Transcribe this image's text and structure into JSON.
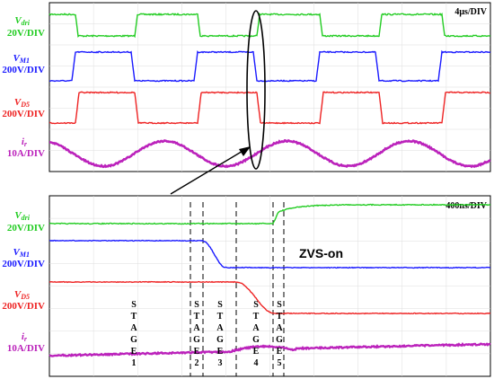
{
  "chart_data": [
    {
      "type": "line",
      "timebase": "4μs/DIV",
      "channels": [
        {
          "symbol": "V",
          "subscript": "dri",
          "scale": "20V/DIV",
          "color": "#22cc22"
        },
        {
          "symbol": "V",
          "subscript": "M1",
          "scale": "200V/DIV",
          "color": "#1a1aff"
        },
        {
          "symbol": "V",
          "subscript": "D5",
          "scale": "200V/DIV",
          "color": "#ee2222"
        },
        {
          "symbol": "i",
          "subscript": "r",
          "scale": "10A/DIV",
          "color": "#bb22bb"
        }
      ],
      "waveform": "periodic square waves with sinusoidal resonant current, period ≈ 2.75 divisions"
    },
    {
      "type": "line",
      "timebase": "400ns/DIV",
      "channels": [
        {
          "symbol": "V",
          "subscript": "dri",
          "scale": "20V/DIV",
          "color": "#22cc22"
        },
        {
          "symbol": "V",
          "subscript": "M1",
          "scale": "200V/DIV",
          "color": "#1a1aff"
        },
        {
          "symbol": "V",
          "subscript": "D5",
          "scale": "200V/DIV",
          "color": "#ee2222"
        },
        {
          "symbol": "i",
          "subscript": "r",
          "scale": "10A/DIV",
          "color": "#bb22bb"
        }
      ],
      "annotation": "ZVS-on",
      "stages": [
        {
          "letters": [
            "S",
            "T",
            "A",
            "G",
            "E"
          ],
          "number": "1"
        },
        {
          "letters": [
            "S",
            "T",
            "A",
            "G",
            "E"
          ],
          "number": "2"
        },
        {
          "letters": [
            "S",
            "T",
            "A",
            "G",
            "E"
          ],
          "number": "3"
        },
        {
          "letters": [
            "S",
            "T",
            "A",
            "G",
            "E"
          ],
          "number": "4"
        },
        {
          "letters": [
            "S",
            "T",
            "A",
            "G",
            "E"
          ],
          "number": "5"
        }
      ]
    }
  ]
}
